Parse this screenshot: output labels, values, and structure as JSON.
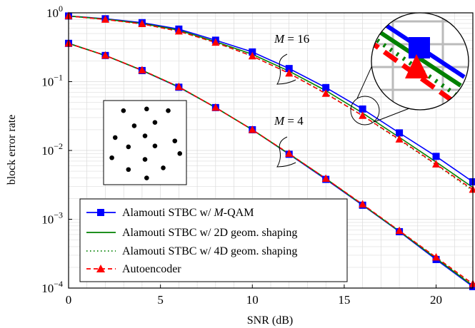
{
  "chart_data": {
    "type": "line",
    "xlabel": "SNR (dB)",
    "ylabel": "block error rate",
    "xlim": [
      0,
      22
    ],
    "ylim": [
      0.0001,
      1
    ],
    "yscale": "log",
    "grid": true,
    "x_ticks": [
      0,
      5,
      10,
      15,
      20
    ],
    "y_ticks": [
      {
        "base": "10",
        "exp": "0"
      },
      {
        "base": "10",
        "exp": "−1"
      },
      {
        "base": "10",
        "exp": "−2"
      },
      {
        "base": "10",
        "exp": "−3"
      },
      {
        "base": "10",
        "exp": "−4"
      }
    ],
    "legend_position": "bottom-left",
    "series": [
      {
        "name": "Alamouti STBC w/ M-QAM",
        "name_prefix": "Alamouti STBC w/ ",
        "name_italic": "M",
        "name_suffix": "-QAM",
        "color": "#0000ff",
        "style": "solid",
        "marker": "square",
        "group": "M16",
        "x": [
          0,
          2,
          4,
          6,
          8,
          10,
          12,
          14,
          16,
          18,
          20,
          22
        ],
        "y": [
          0.9,
          0.82,
          0.72,
          0.58,
          0.4,
          0.27,
          0.155,
          0.082,
          0.04,
          0.018,
          0.0082,
          0.0035
        ]
      },
      {
        "name": "Alamouti STBC w/ 2D geom. shaping",
        "color": "#008000",
        "style": "solid",
        "marker": "none",
        "group": "M16",
        "x": [
          0,
          2,
          4,
          6,
          8,
          10,
          12,
          14,
          16,
          18,
          20,
          22
        ],
        "y": [
          0.9,
          0.81,
          0.7,
          0.56,
          0.38,
          0.25,
          0.142,
          0.074,
          0.035,
          0.0155,
          0.0068,
          0.0029
        ]
      },
      {
        "name": "Alamouti STBC w/ 4D geom. shaping",
        "color": "#008000",
        "style": "dotted",
        "marker": "none",
        "group": "M16",
        "x": [
          0,
          2,
          4,
          6,
          8,
          10,
          12,
          14,
          16,
          18,
          20,
          22
        ],
        "y": [
          0.9,
          0.8,
          0.69,
          0.54,
          0.37,
          0.235,
          0.133,
          0.068,
          0.032,
          0.0142,
          0.0062,
          0.0026
        ]
      },
      {
        "name": "Autoencoder",
        "color": "#ff0000",
        "style": "dashed",
        "marker": "triangle",
        "group": "M16",
        "x": [
          0,
          2,
          4,
          6,
          8,
          10,
          12,
          14,
          16,
          18,
          20,
          22
        ],
        "y": [
          0.9,
          0.8,
          0.69,
          0.54,
          0.37,
          0.235,
          0.132,
          0.067,
          0.032,
          0.0145,
          0.0063,
          0.0027
        ]
      },
      {
        "name": "Alamouti STBC w/ M-QAM",
        "color": "#0000ff",
        "style": "solid",
        "marker": "square",
        "group": "M4",
        "x": [
          0,
          2,
          4,
          6,
          8,
          10,
          12,
          14,
          16,
          18,
          20,
          22
        ],
        "y": [
          0.36,
          0.24,
          0.145,
          0.083,
          0.042,
          0.02,
          0.0088,
          0.0038,
          0.0016,
          0.00066,
          0.00026,
          0.000105
        ]
      },
      {
        "name": "Alamouti STBC w/ 2D geom. shaping",
        "color": "#008000",
        "style": "solid",
        "marker": "none",
        "group": "M4",
        "x": [
          0,
          2,
          4,
          6,
          8,
          10,
          12,
          14,
          16,
          18,
          20,
          22
        ],
        "y": [
          0.36,
          0.24,
          0.146,
          0.084,
          0.042,
          0.02,
          0.0089,
          0.0039,
          0.00162,
          0.00067,
          0.00027,
          0.000108
        ]
      },
      {
        "name": "Alamouti STBC w/ 4D geom. shaping",
        "color": "#008000",
        "style": "dotted",
        "marker": "none",
        "group": "M4",
        "x": [
          0,
          2,
          4,
          6,
          8,
          10,
          12,
          14,
          16,
          18,
          20,
          22
        ],
        "y": [
          0.36,
          0.24,
          0.146,
          0.084,
          0.042,
          0.02,
          0.0089,
          0.0039,
          0.00163,
          0.00068,
          0.00028,
          0.00011
        ]
      },
      {
        "name": "Autoencoder",
        "color": "#ff0000",
        "style": "dashed",
        "marker": "triangle",
        "group": "M4",
        "x": [
          0,
          2,
          4,
          6,
          8,
          10,
          12,
          14,
          16,
          18,
          20,
          22
        ],
        "y": [
          0.36,
          0.24,
          0.147,
          0.084,
          0.042,
          0.02,
          0.009,
          0.0039,
          0.00165,
          0.00068,
          0.00028,
          0.000115
        ]
      }
    ],
    "annotations": {
      "m16": {
        "lhs": "M",
        "eq": " = 16"
      },
      "m4": {
        "lhs": "M",
        "eq": " = 4"
      }
    },
    "constellation_inset": {
      "points": [
        [
          0.24,
          0.12
        ],
        [
          0.52,
          0.1
        ],
        [
          0.78,
          0.12
        ],
        [
          0.37,
          0.3
        ],
        [
          0.62,
          0.26
        ],
        [
          0.14,
          0.44
        ],
        [
          0.5,
          0.42
        ],
        [
          0.86,
          0.48
        ],
        [
          0.3,
          0.55
        ],
        [
          0.62,
          0.54
        ],
        [
          0.1,
          0.68
        ],
        [
          0.5,
          0.7
        ],
        [
          0.92,
          0.63
        ],
        [
          0.3,
          0.82
        ],
        [
          0.72,
          0.8
        ],
        [
          0.52,
          0.92
        ]
      ]
    }
  }
}
